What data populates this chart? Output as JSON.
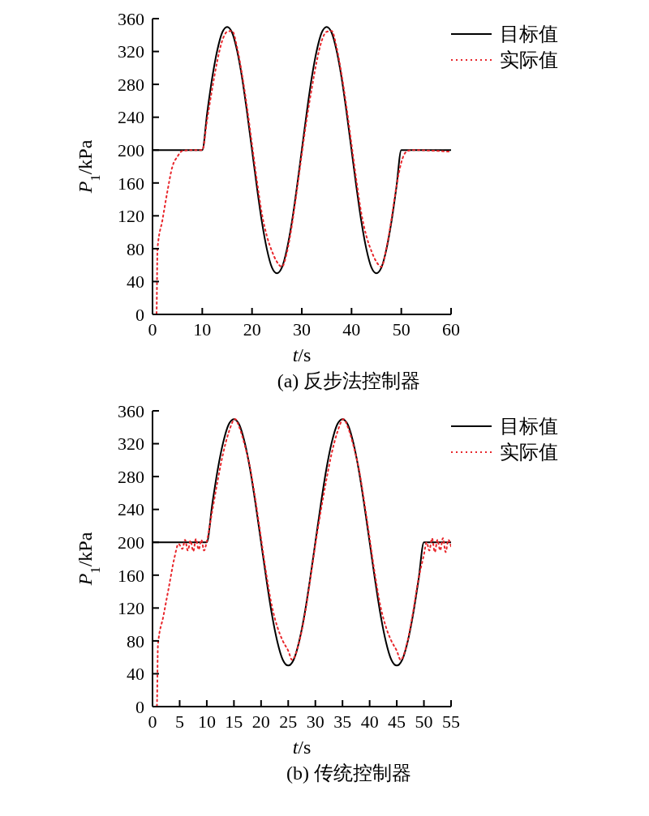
{
  "chart_data": [
    {
      "type": "line",
      "annotations": [
        "(a) 反步法控制器"
      ],
      "xlabel": "t/s",
      "ylabel": "P$_{1}$/kPa",
      "xlim": [
        0,
        60
      ],
      "xticks": [
        0,
        10,
        20,
        30,
        40,
        50,
        60
      ],
      "ylim": [
        0,
        360
      ],
      "yticks": [
        0,
        40,
        80,
        120,
        160,
        200,
        240,
        280,
        320,
        360
      ],
      "legend": "top right",
      "marker": "none",
      "series": [
        {
          "name": "目标值",
          "color": "#000000",
          "line_style": "solid",
          "x": [
            0,
            10,
            11,
            12,
            13,
            14,
            15,
            16,
            17,
            18,
            19,
            20,
            21,
            22,
            23,
            24,
            25,
            26,
            27,
            28,
            29,
            30,
            31,
            32,
            33,
            34,
            35,
            36,
            37,
            38,
            39,
            40,
            41,
            42,
            43,
            44,
            45,
            46,
            47,
            48,
            49,
            50,
            60
          ],
          "values": [
            200,
            200,
            246,
            288,
            321,
            343,
            350,
            343,
            321,
            288,
            246,
            200,
            154,
            112,
            79,
            57,
            50,
            57,
            79,
            112,
            154,
            200,
            246,
            288,
            321,
            343,
            350,
            343,
            321,
            288,
            246,
            200,
            154,
            112,
            79,
            57,
            50,
            57,
            79,
            112,
            154,
            200,
            200
          ]
        },
        {
          "name": "实际值",
          "color": "#e8262b",
          "line_style": "dotted",
          "x": [
            0,
            0.8,
            1,
            2,
            3,
            4,
            5,
            6,
            8,
            10,
            11,
            12,
            13,
            14,
            15,
            16,
            17,
            18,
            19,
            20,
            21,
            22,
            23,
            24,
            25,
            26,
            27,
            28,
            29,
            30,
            31,
            32,
            33,
            34,
            35,
            36,
            37,
            38,
            39,
            40,
            41,
            42,
            43,
            44,
            45,
            46,
            47,
            48,
            49,
            50,
            51,
            52,
            60
          ],
          "values": [
            0,
            0,
            80,
            115,
            150,
            180,
            192,
            199,
            200,
            200,
            238,
            275,
            308,
            333,
            344,
            345,
            325,
            292,
            252,
            207,
            162,
            122,
            95,
            77,
            64,
            58,
            75,
            108,
            150,
            195,
            238,
            275,
            308,
            333,
            344,
            345,
            325,
            292,
            252,
            207,
            162,
            122,
            95,
            77,
            64,
            58,
            80,
            115,
            155,
            185,
            198,
            200,
            198
          ]
        }
      ]
    },
    {
      "type": "line",
      "annotations": [
        "(b) 传统控制器"
      ],
      "xlabel": "t/s",
      "ylabel": "P$_{1}$/kPa",
      "xlim": [
        0,
        55
      ],
      "xticks": [
        0,
        5,
        10,
        15,
        20,
        25,
        30,
        35,
        40,
        45,
        50,
        55
      ],
      "ylim": [
        0,
        360
      ],
      "yticks": [
        0,
        40,
        80,
        120,
        160,
        200,
        240,
        280,
        320,
        360
      ],
      "legend": "top right",
      "marker": "none",
      "series": [
        {
          "name": "目标值",
          "color": "#000000",
          "line_style": "solid",
          "x": [
            0,
            10,
            11,
            12,
            13,
            14,
            15,
            16,
            17,
            18,
            19,
            20,
            21,
            22,
            23,
            24,
            25,
            26,
            27,
            28,
            29,
            30,
            31,
            32,
            33,
            34,
            35,
            36,
            37,
            38,
            39,
            40,
            41,
            42,
            43,
            44,
            45,
            46,
            47,
            48,
            49,
            50,
            55
          ],
          "values": [
            200,
            200,
            246,
            288,
            321,
            343,
            350,
            343,
            321,
            288,
            246,
            200,
            154,
            112,
            79,
            57,
            50,
            57,
            79,
            112,
            154,
            200,
            246,
            288,
            321,
            343,
            350,
            343,
            321,
            288,
            246,
            200,
            154,
            112,
            79,
            57,
            50,
            57,
            79,
            112,
            154,
            200,
            200
          ]
        },
        {
          "name": "实际值",
          "color": "#e8262b",
          "line_style": "dotted",
          "x": [
            0,
            0.8,
            1,
            2,
            3,
            4,
            4.8,
            5.5,
            6,
            6.5,
            7,
            7.5,
            8,
            8.5,
            9,
            9.5,
            10,
            11,
            12,
            13,
            14,
            15.2,
            16,
            17,
            18,
            19,
            20,
            21,
            22,
            23,
            24,
            25,
            25.7,
            27,
            28,
            29,
            30,
            31,
            32,
            33,
            34,
            35.2,
            36,
            37,
            38,
            39,
            40,
            41,
            42,
            43,
            44,
            45,
            45.7,
            47,
            48,
            49,
            50,
            50.5,
            51,
            51.5,
            52,
            52.5,
            53,
            53.5,
            54,
            54.5,
            55
          ],
          "values": [
            0,
            0,
            75,
            110,
            145,
            180,
            198,
            192,
            203,
            190,
            202,
            189,
            204,
            191,
            203,
            190,
            201,
            238,
            275,
            308,
            333,
            350,
            340,
            318,
            290,
            250,
            205,
            160,
            122,
            97,
            80,
            68,
            57,
            78,
            110,
            152,
            197,
            238,
            275,
            308,
            333,
            350,
            340,
            318,
            290,
            250,
            205,
            160,
            122,
            97,
            80,
            68,
            57,
            80,
            115,
            155,
            185,
            200,
            190,
            205,
            188,
            203,
            190,
            205,
            188,
            203,
            195
          ]
        }
      ]
    }
  ]
}
